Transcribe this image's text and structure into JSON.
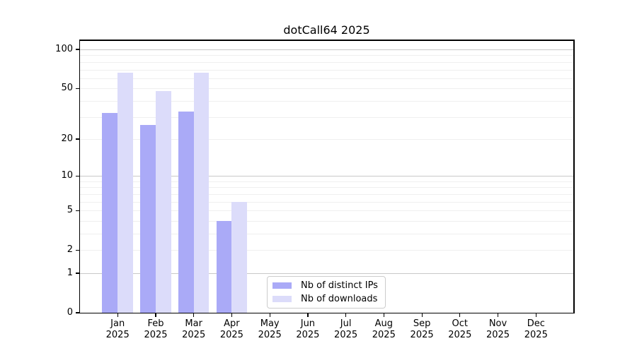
{
  "chart_data": {
    "type": "bar",
    "title": "dotCall64 2025",
    "categories": [
      "Jan",
      "Feb",
      "Mar",
      "Apr",
      "May",
      "Jun",
      "Jul",
      "Aug",
      "Sep",
      "Oct",
      "Nov",
      "Dec"
    ],
    "x_tick_sublabel": "2025",
    "series": [
      {
        "name": "Nb of distinct IPs",
        "color": "#aaaaf7",
        "values": [
          32,
          26,
          33,
          4,
          0,
          0,
          0,
          0,
          0,
          0,
          0,
          0
        ]
      },
      {
        "name": "Nb of downloads",
        "color": "#dcdcfa",
        "values": [
          66,
          48,
          66,
          6,
          0,
          0,
          0,
          0,
          0,
          0,
          0,
          0
        ]
      }
    ],
    "y_ticks": [
      0,
      1,
      2,
      5,
      10,
      20,
      50,
      100
    ],
    "y_minor_gridlines": [
      3,
      4,
      6,
      7,
      8,
      9,
      30,
      40,
      60,
      70,
      80,
      90
    ],
    "y_decade_gridlines": [
      1,
      10,
      100
    ],
    "y_scale": "log1p",
    "ylim": [
      0,
      118
    ],
    "grid": true,
    "legend_position": "lower center"
  },
  "colors": {
    "background": "#ffffff",
    "grid_minor": "#efefef",
    "grid_decade": "#c8c8c8",
    "axis": "#000000",
    "legend_border": "#cccccc"
  }
}
